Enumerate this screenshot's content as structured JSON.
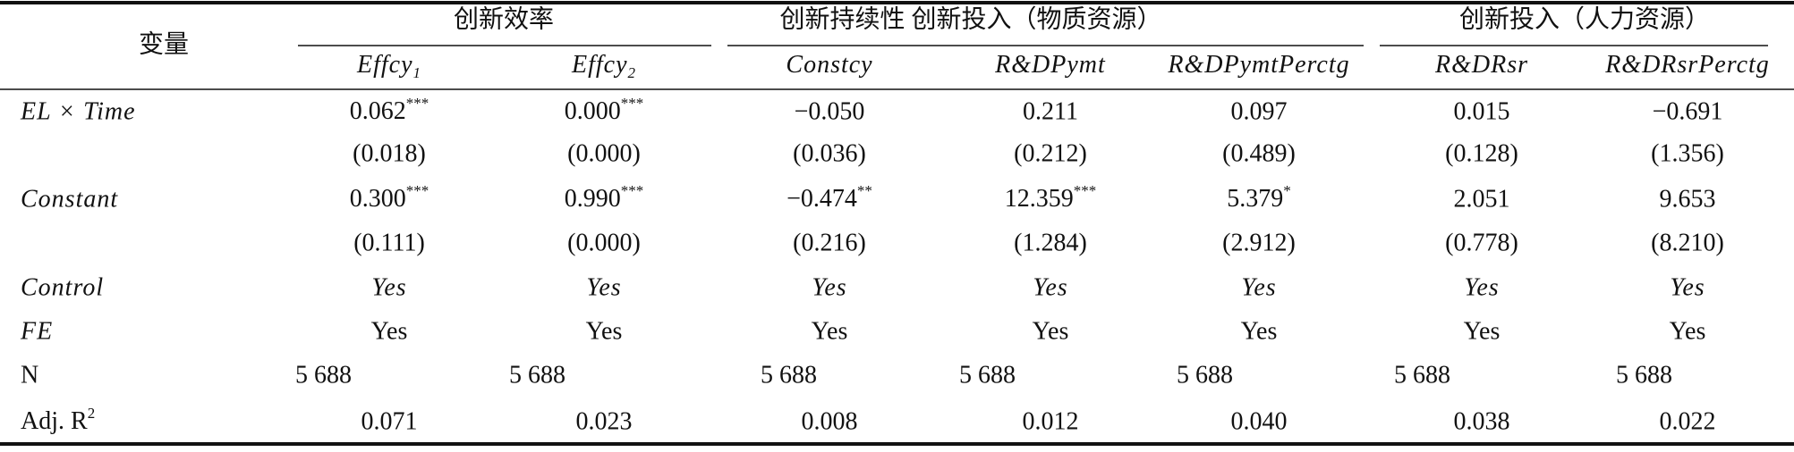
{
  "header": {
    "variable": "变量",
    "groups": [
      "创新效率",
      "创新持续性 创新投入（物质资源）",
      "创新投入（人力资源）"
    ],
    "columns": [
      {
        "text": "Effcy",
        "sub": "1"
      },
      {
        "text": "Effcy",
        "sub": "2"
      },
      {
        "text": "Constcy"
      },
      {
        "text": "R&DPymt"
      },
      {
        "text": "R&DPymtPerctg"
      },
      {
        "text": "R&DRsr"
      },
      {
        "text": "R&DRsrPerctg"
      }
    ]
  },
  "rows": [
    {
      "label": "EL × Time",
      "cells": [
        {
          "text": "0.062",
          "sup": "***"
        },
        {
          "text": "0.000",
          "sup": "***"
        },
        "−0.050",
        "0.211",
        "0.097",
        "0.015",
        "−0.691"
      ]
    },
    {
      "cells": [
        "(0.018)",
        "(0.000)",
        "(0.036)",
        "(0.212)",
        "(0.489)",
        "(0.128)",
        "(1.356)"
      ]
    },
    {
      "label": "Constant",
      "cells": [
        {
          "text": "0.300",
          "sup": "***"
        },
        {
          "text": "0.990",
          "sup": "***"
        },
        {
          "text": "−0.474",
          "sup": "**"
        },
        {
          "text": "12.359",
          "sup": "***"
        },
        {
          "text": "5.379",
          "sup": "*"
        },
        "2.051",
        "9.653"
      ]
    },
    {
      "cells": [
        "(0.111)",
        "(0.000)",
        "(0.216)",
        "(1.284)",
        "(2.912)",
        "(0.778)",
        "(8.210)"
      ]
    },
    {
      "label": "Control",
      "cells": [
        "Yes",
        "Yes",
        "Yes",
        "Yes",
        "Yes",
        "Yes",
        "Yes"
      ]
    },
    {
      "label": "FE",
      "cells": [
        "Yes",
        "Yes",
        "Yes",
        "Yes",
        "Yes",
        "Yes",
        "Yes"
      ]
    },
    {
      "label": "N",
      "cells": [
        "5 688",
        "5 688",
        "5 688",
        "5 688",
        "5 688",
        "5 688",
        "5 688"
      ]
    },
    {
      "label": {
        "text": "Adj. R",
        "sup": "2"
      },
      "cells": [
        "0.071",
        "0.023",
        "0.008",
        "0.012",
        "0.040",
        "0.038",
        "0.022"
      ]
    }
  ]
}
